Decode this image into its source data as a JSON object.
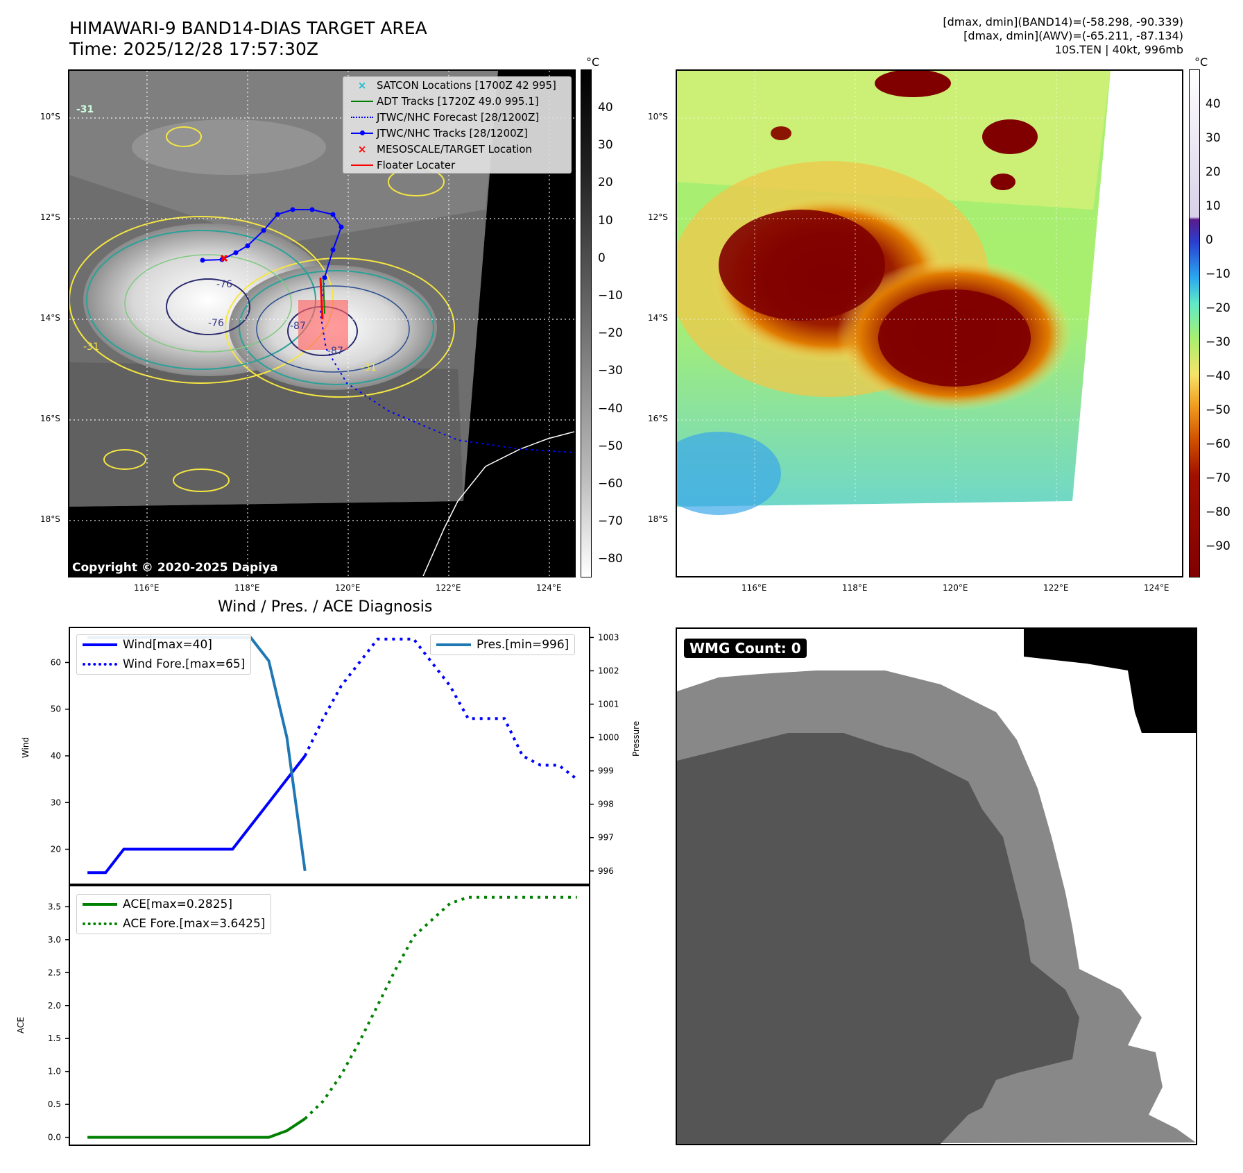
{
  "header": {
    "title_line1": "HIMAWARI-9 BAND14-DIAS TARGET AREA",
    "title_line2": "Time: 2025/12/28 17:57:30Z",
    "info_line1": "[dmax, dmin](BAND14)=(-58.298, -90.339)",
    "info_line2": "[dmax, dmin](AWV)=(-65.211, -87.134)",
    "info_line3": "10S.TEN | 40kt, 996mb"
  },
  "map": {
    "lat_labels": [
      "10°S",
      "12°S",
      "14°S",
      "16°S",
      "18°S"
    ],
    "lon_labels": [
      "116°E",
      "118°E",
      "120°E",
      "122°E",
      "124°E"
    ],
    "copyright": "Copyright © 2020-2025 Dapiya",
    "contour_labels": [
      "-31",
      "-31",
      "-31",
      "-76",
      "-76",
      "-87",
      "-87"
    ],
    "legend": [
      {
        "label": "SATCON Locations [1700Z 42 995]",
        "color": "#17becf",
        "symbol": "x"
      },
      {
        "label": "ADT Tracks [1720Z 49.0 995.1]",
        "color": "#008000",
        "symbol": "line"
      },
      {
        "label": "JTWC/NHC Forecast [28/1200Z]",
        "color": "#0000ff",
        "symbol": "dotted"
      },
      {
        "label": "JTWC/NHC Tracks [28/1200Z]",
        "color": "#0000ff",
        "symbol": "line-dot"
      },
      {
        "label": "MESOSCALE/TARGET Location",
        "color": "#ff0000",
        "symbol": "x"
      },
      {
        "label": "Floater Locater",
        "color": "#ff0000",
        "symbol": "line"
      }
    ]
  },
  "colorbar1": {
    "unit": "°C",
    "ticks": [
      "40",
      "30",
      "20",
      "10",
      "0",
      "−10",
      "−20",
      "−30",
      "−40",
      "−50",
      "−60",
      "−70",
      "−80"
    ]
  },
  "colorbar2": {
    "unit": "°C",
    "ticks": [
      "40",
      "30",
      "20",
      "10",
      "0",
      "−10",
      "−20",
      "−30",
      "−40",
      "−50",
      "−60",
      "−70",
      "−80",
      "−90"
    ]
  },
  "wmg": {
    "label": "WMG Count: 0"
  },
  "chart_data": [
    {
      "type": "line",
      "title": "Wind / Pres. / ACE Diagnosis",
      "ylabel": "Wind",
      "y2label": "Pressure",
      "ylim": [
        12.5,
        67.5
      ],
      "y2lim": [
        995.6,
        1003.3
      ],
      "yticks": [
        "20",
        "30",
        "40",
        "50",
        "60"
      ],
      "y2ticks": [
        "996",
        "997",
        "998",
        "999",
        "1000",
        "1001",
        "1002",
        "1003"
      ],
      "series": [
        {
          "name": "Wind[max=40]",
          "color": "#0000ff",
          "style": "solid",
          "x": [
            0,
            1,
            2,
            3,
            4,
            5,
            6,
            7,
            8,
            9,
            10,
            11,
            12
          ],
          "values": [
            15,
            15,
            20,
            20,
            20,
            20,
            20,
            20,
            20,
            25,
            30,
            35,
            40
          ]
        },
        {
          "name": "Wind Fore.[max=65]",
          "color": "#0000ff",
          "style": "dotted",
          "x": [
            12,
            13,
            14,
            15,
            16,
            17,
            18,
            19,
            20,
            21,
            22,
            23,
            24,
            25,
            26,
            27
          ],
          "values": [
            40,
            48,
            55,
            60,
            65,
            65,
            65,
            60,
            55,
            48,
            48,
            48,
            40,
            38,
            38,
            35
          ]
        },
        {
          "name": "Pres.[min=996]",
          "color": "#1f77b4",
          "style": "solid",
          "x": [
            0,
            1,
            2,
            3,
            4,
            5,
            6,
            7,
            8,
            9,
            10,
            11,
            12
          ],
          "values": [
            1003,
            1003,
            1003,
            1003,
            1003,
            1003,
            1003,
            1003,
            1003,
            1003,
            1002.3,
            1000,
            996
          ]
        }
      ]
    },
    {
      "type": "line",
      "ylabel": "ACE",
      "ylim": [
        -0.12,
        3.82
      ],
      "yticks": [
        "0.0",
        "0.5",
        "1.0",
        "1.5",
        "2.0",
        "2.5",
        "3.0",
        "3.5"
      ],
      "series": [
        {
          "name": "ACE[max=0.2825]",
          "color": "#008000",
          "style": "solid",
          "x": [
            0,
            1,
            2,
            3,
            4,
            5,
            6,
            7,
            8,
            9,
            10,
            11,
            12
          ],
          "values": [
            0,
            0,
            0,
            0,
            0,
            0,
            0,
            0,
            0,
            0,
            0,
            0.1,
            0.2825
          ]
        },
        {
          "name": "ACE Fore.[max=3.6425]",
          "color": "#008000",
          "style": "dotted",
          "x": [
            12,
            13,
            14,
            15,
            16,
            17,
            18,
            19,
            20,
            21,
            22,
            23,
            24,
            25,
            26,
            27
          ],
          "values": [
            0.2825,
            0.55,
            0.95,
            1.45,
            2.0,
            2.55,
            3.05,
            3.3,
            3.55,
            3.6425,
            3.6425,
            3.6425,
            3.6425,
            3.6425,
            3.6425,
            3.6425
          ]
        }
      ]
    }
  ]
}
